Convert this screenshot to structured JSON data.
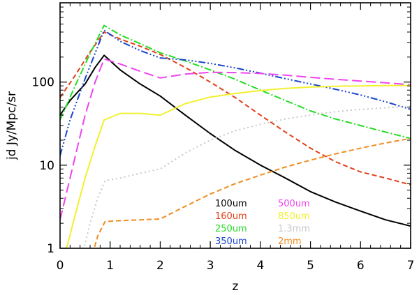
{
  "chart_data": {
    "type": "line",
    "title": "",
    "xlabel": "z",
    "ylabel": "jd  Jy/Mpc/sr",
    "xlim": [
      0,
      7
    ],
    "ylim": [
      1,
      900
    ],
    "yscale": "log",
    "grid": false,
    "x_ticks": [
      {
        "value": 0,
        "label": "0"
      },
      {
        "value": 1,
        "label": "1"
      },
      {
        "value": 2,
        "label": "2"
      },
      {
        "value": 3,
        "label": "3"
      },
      {
        "value": 4,
        "label": "4"
      },
      {
        "value": 5,
        "label": "5"
      },
      {
        "value": 6,
        "label": "6"
      },
      {
        "value": 7,
        "label": "7"
      }
    ],
    "y_ticks": [
      {
        "value": 1,
        "label": "1"
      },
      {
        "value": 10,
        "label": "10"
      },
      {
        "value": 100,
        "label": "100"
      }
    ],
    "series": [
      {
        "name": "100um",
        "color": "#000000",
        "dash": "",
        "points": [
          [
            0,
            40
          ],
          [
            0.2,
            60
          ],
          [
            0.5,
            95
          ],
          [
            0.7,
            150
          ],
          [
            0.88,
            210
          ],
          [
            1.2,
            140
          ],
          [
            1.6,
            95
          ],
          [
            2.0,
            68
          ],
          [
            2.5,
            40
          ],
          [
            3.0,
            24
          ],
          [
            3.5,
            15
          ],
          [
            4.0,
            10
          ],
          [
            4.5,
            7
          ],
          [
            5.0,
            4.8
          ],
          [
            5.5,
            3.6
          ],
          [
            6.0,
            2.8
          ],
          [
            6.5,
            2.2
          ],
          [
            7.0,
            1.85
          ]
        ]
      },
      {
        "name": "160um",
        "color": "#e0401a",
        "dash": "7,4",
        "points": [
          [
            0,
            65
          ],
          [
            0.3,
            120
          ],
          [
            0.6,
            230
          ],
          [
            0.88,
            400
          ],
          [
            1.2,
            330
          ],
          [
            1.6,
            270
          ],
          [
            2.0,
            215
          ],
          [
            2.5,
            150
          ],
          [
            3.0,
            100
          ],
          [
            3.5,
            65
          ],
          [
            4.0,
            40
          ],
          [
            4.5,
            25
          ],
          [
            5.0,
            16
          ],
          [
            5.5,
            11
          ],
          [
            6.0,
            8.3
          ],
          [
            6.5,
            7
          ],
          [
            7.0,
            5.8
          ]
        ]
      },
      {
        "name": "250um",
        "color": "#22dd22",
        "dash": "10,3,2,3",
        "points": [
          [
            0,
            35
          ],
          [
            0.3,
            90
          ],
          [
            0.6,
            220
          ],
          [
            0.88,
            480
          ],
          [
            1.2,
            370
          ],
          [
            1.6,
            290
          ],
          [
            2.0,
            225
          ],
          [
            2.5,
            180
          ],
          [
            3.0,
            140
          ],
          [
            3.5,
            108
          ],
          [
            4.0,
            80
          ],
          [
            4.5,
            60
          ],
          [
            5.0,
            45
          ],
          [
            5.5,
            36
          ],
          [
            6.0,
            30
          ],
          [
            6.5,
            25
          ],
          [
            7.0,
            21
          ]
        ]
      },
      {
        "name": "350um",
        "color": "#1a44cc",
        "dash": "10,3,2,3,2,3,2,3",
        "points": [
          [
            0,
            13
          ],
          [
            0.2,
            35
          ],
          [
            0.5,
            110
          ],
          [
            0.88,
            420
          ],
          [
            1.2,
            310
          ],
          [
            1.6,
            240
          ],
          [
            2.0,
            195
          ],
          [
            2.5,
            185
          ],
          [
            3.0,
            168
          ],
          [
            3.5,
            148
          ],
          [
            4.0,
            128
          ],
          [
            4.5,
            110
          ],
          [
            5.0,
            95
          ],
          [
            5.5,
            82
          ],
          [
            6.0,
            70
          ],
          [
            6.5,
            58
          ],
          [
            7.0,
            47
          ]
        ]
      },
      {
        "name": "500um",
        "color": "#ee44ee",
        "dash": "14,6",
        "points": [
          [
            0,
            2.2
          ],
          [
            0.2,
            7
          ],
          [
            0.5,
            40
          ],
          [
            0.7,
            100
          ],
          [
            0.88,
            190
          ],
          [
            1.2,
            165
          ],
          [
            1.6,
            135
          ],
          [
            2.0,
            112
          ],
          [
            2.5,
            125
          ],
          [
            3.0,
            131
          ],
          [
            3.5,
            130
          ],
          [
            4.0,
            127
          ],
          [
            4.5,
            121
          ],
          [
            5.0,
            114
          ],
          [
            5.5,
            108
          ],
          [
            6.0,
            103
          ],
          [
            6.5,
            98
          ],
          [
            7.0,
            93
          ]
        ]
      },
      {
        "name": "850um",
        "color": "#f2f030",
        "dash": "",
        "points": [
          [
            0.1,
            0.85
          ],
          [
            0.3,
            2.5
          ],
          [
            0.5,
            7
          ],
          [
            0.7,
            17
          ],
          [
            0.88,
            35
          ],
          [
            1.2,
            42
          ],
          [
            1.6,
            42
          ],
          [
            2.0,
            40
          ],
          [
            2.5,
            55
          ],
          [
            3.0,
            66
          ],
          [
            3.5,
            73
          ],
          [
            4.0,
            79
          ],
          [
            4.5,
            84
          ],
          [
            5.0,
            87
          ],
          [
            5.5,
            89
          ],
          [
            6.0,
            90
          ],
          [
            6.5,
            91
          ],
          [
            7.0,
            91
          ]
        ]
      },
      {
        "name": "1.3mm",
        "color": "#c8c8c8",
        "dash": "2,4",
        "points": [
          [
            0.45,
            0.85
          ],
          [
            0.6,
            2
          ],
          [
            0.75,
            4
          ],
          [
            0.9,
            6.5
          ],
          [
            1.2,
            7
          ],
          [
            1.6,
            8
          ],
          [
            2.0,
            9
          ],
          [
            2.5,
            14
          ],
          [
            3.0,
            20
          ],
          [
            3.5,
            26
          ],
          [
            4.0,
            31
          ],
          [
            4.5,
            36
          ],
          [
            5.0,
            40
          ],
          [
            5.5,
            44
          ],
          [
            6.0,
            47
          ],
          [
            6.5,
            49
          ],
          [
            7.0,
            51
          ]
        ]
      },
      {
        "name": "2mm",
        "color": "#f08c20",
        "dash": "7,4",
        "points": [
          [
            0.65,
            0.85
          ],
          [
            0.75,
            1.4
          ],
          [
            0.9,
            2.1
          ],
          [
            1.2,
            2.15
          ],
          [
            1.6,
            2.2
          ],
          [
            2.0,
            2.25
          ],
          [
            2.5,
            3.2
          ],
          [
            3.0,
            4.5
          ],
          [
            3.5,
            6
          ],
          [
            4.0,
            7.6
          ],
          [
            4.5,
            9.5
          ],
          [
            5.0,
            11.5
          ],
          [
            5.5,
            13.7
          ],
          [
            6.0,
            16
          ],
          [
            6.5,
            18.5
          ],
          [
            7.0,
            21
          ]
        ]
      }
    ],
    "legend": [
      {
        "label": "100um",
        "color": "#000000",
        "column": 0,
        "row": 0
      },
      {
        "label": "160um",
        "color": "#e0401a",
        "column": 0,
        "row": 1
      },
      {
        "label": "250um",
        "color": "#22dd22",
        "column": 0,
        "row": 2
      },
      {
        "label": "350um",
        "color": "#1a44cc",
        "column": 0,
        "row": 3
      },
      {
        "label": "500um",
        "color": "#ee44ee",
        "column": 1,
        "row": 0
      },
      {
        "label": "850um",
        "color": "#f2f030",
        "column": 1,
        "row": 1
      },
      {
        "label": "1.3mm",
        "color": "#c8c8c8",
        "column": 1,
        "row": 2
      },
      {
        "label": "2mm",
        "color": "#f08c20",
        "column": 1,
        "row": 3
      }
    ],
    "legend_position": "bottom-center"
  }
}
